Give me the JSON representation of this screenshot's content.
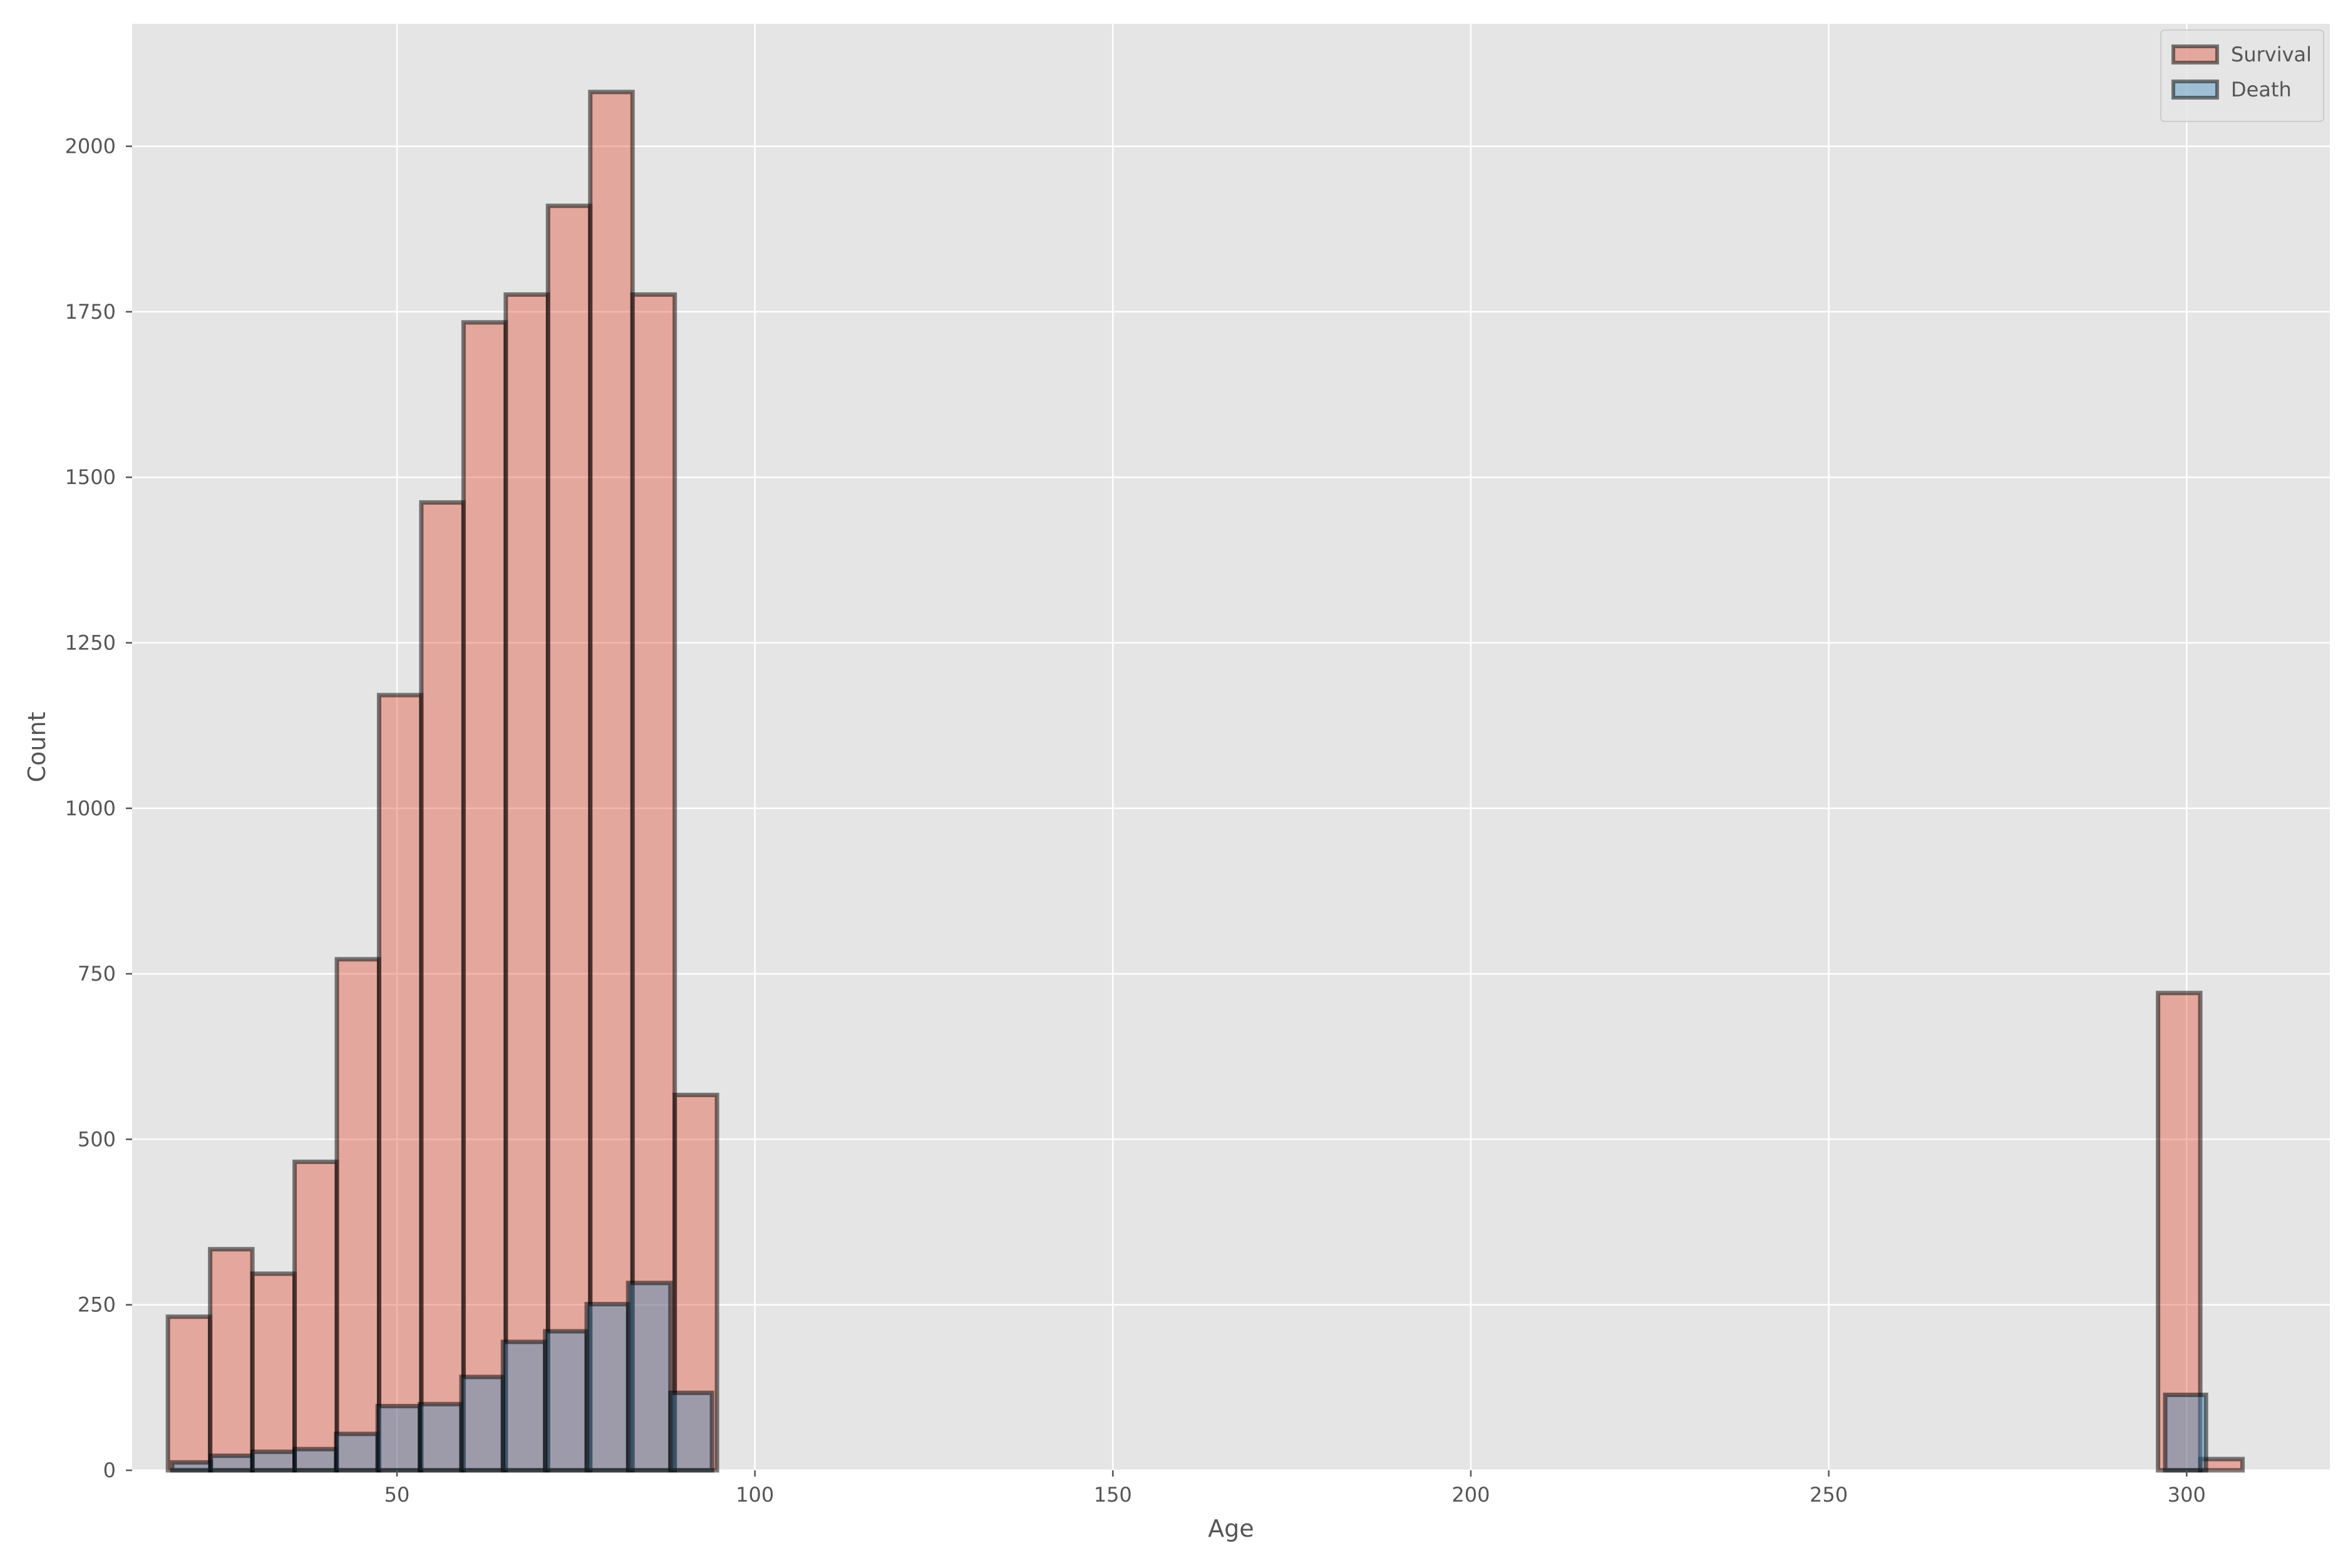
{
  "chart_data": {
    "type": "histogram",
    "title": "",
    "xlabel": "Age",
    "ylabel": "Count",
    "xlim": [
      13,
      320
    ],
    "ylim": [
      0,
      2185
    ],
    "grid": true,
    "legend_position": "top-right",
    "xticks": [
      50,
      100,
      150,
      200,
      250,
      300
    ],
    "yticks": [
      0,
      250,
      500,
      750,
      1000,
      1250,
      1500,
      1750,
      2000
    ],
    "series": [
      {
        "name": "Survival",
        "color": "#e24a33",
        "bins": [
          {
            "x0": 18.0,
            "x1": 23.9,
            "count": 232
          },
          {
            "x0": 23.9,
            "x1": 29.8,
            "count": 334
          },
          {
            "x0": 29.8,
            "x1": 35.7,
            "count": 297
          },
          {
            "x0": 35.7,
            "x1": 41.6,
            "count": 466
          },
          {
            "x0": 41.6,
            "x1": 47.5,
            "count": 772
          },
          {
            "x0": 47.5,
            "x1": 53.4,
            "count": 1171
          },
          {
            "x0": 53.4,
            "x1": 59.3,
            "count": 1462
          },
          {
            "x0": 59.3,
            "x1": 65.2,
            "count": 1734
          },
          {
            "x0": 65.2,
            "x1": 71.1,
            "count": 1776
          },
          {
            "x0": 71.1,
            "x1": 77.0,
            "count": 1910
          },
          {
            "x0": 77.0,
            "x1": 82.9,
            "count": 2082
          },
          {
            "x0": 82.9,
            "x1": 88.8,
            "count": 1776
          },
          {
            "x0": 88.8,
            "x1": 94.7,
            "count": 567
          },
          {
            "x0": 296.0,
            "x1": 301.9,
            "count": 721
          },
          {
            "x0": 301.9,
            "x1": 307.8,
            "count": 17
          }
        ]
      },
      {
        "name": "Death",
        "color": "#348abd",
        "bins": [
          {
            "x0": 18.6,
            "x1": 24.0,
            "count": 12
          },
          {
            "x0": 24.0,
            "x1": 29.8,
            "count": 22
          },
          {
            "x0": 29.8,
            "x1": 35.7,
            "count": 28
          },
          {
            "x0": 35.7,
            "x1": 41.5,
            "count": 32
          },
          {
            "x0": 41.5,
            "x1": 47.3,
            "count": 55
          },
          {
            "x0": 47.3,
            "x1": 53.2,
            "count": 97
          },
          {
            "x0": 53.2,
            "x1": 59.0,
            "count": 100
          },
          {
            "x0": 59.0,
            "x1": 64.8,
            "count": 141
          },
          {
            "x0": 64.8,
            "x1": 70.7,
            "count": 194
          },
          {
            "x0": 70.7,
            "x1": 76.5,
            "count": 210
          },
          {
            "x0": 76.5,
            "x1": 82.3,
            "count": 251
          },
          {
            "x0": 82.3,
            "x1": 88.2,
            "count": 283
          },
          {
            "x0": 88.2,
            "x1": 94.0,
            "count": 117
          },
          {
            "x0": 297.0,
            "x1": 302.7,
            "count": 114
          }
        ]
      }
    ]
  }
}
